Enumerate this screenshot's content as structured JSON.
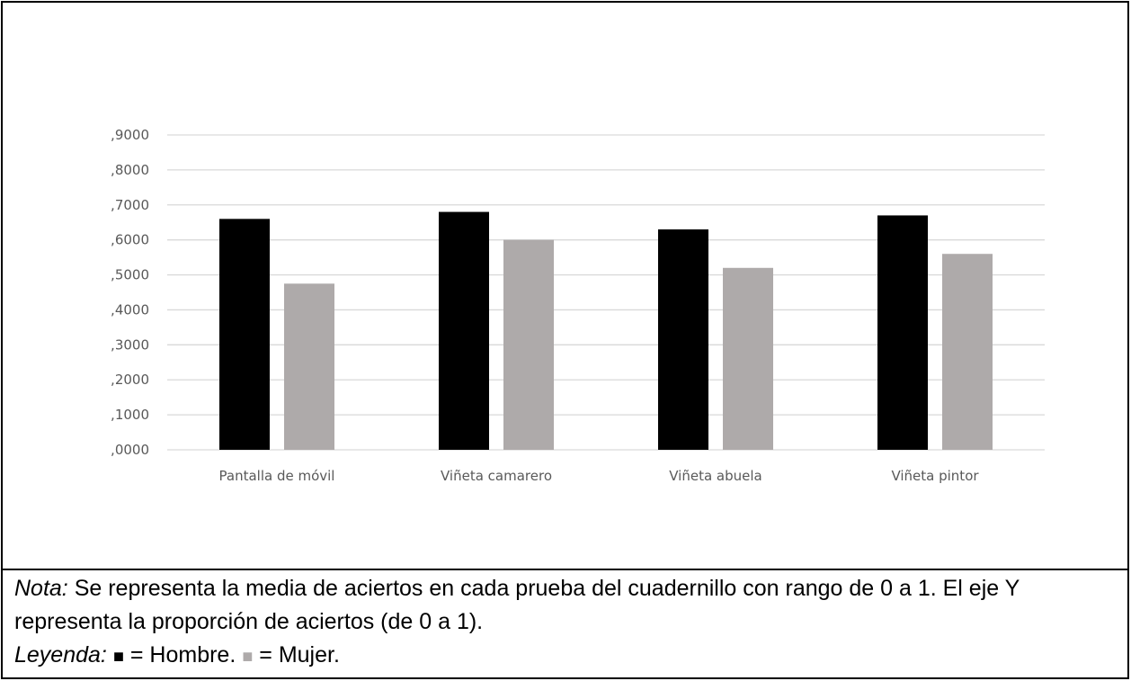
{
  "chart_data": {
    "type": "bar",
    "categories": [
      "Pantalla de móvil",
      "Viñeta camarero",
      "Viñeta abuela",
      "Viñeta pintor"
    ],
    "series": [
      {
        "values": [
          0.66,
          0.68,
          0.63,
          0.67
        ],
        "color": "#000000"
      },
      {
        "values": [
          0.475,
          0.6,
          0.52,
          0.56
        ],
        "color": "#aeaaaa"
      }
    ],
    "yticks": [
      ",0000",
      ",1000",
      ",2000",
      ",3000",
      ",4000",
      ",5000",
      ",6000",
      ",7000",
      ",8000",
      ",9000"
    ],
    "ylim": [
      0,
      0.9
    ],
    "grid": true,
    "gridcolor": "#d9d9d9"
  },
  "note": {
    "nota_label": "Nota:",
    "nota_text": " Se representa la media de aciertos en cada prueba del cuadernillo con rango de 0 a 1. El eje Y representa la proporción de aciertos (de 0 a 1).",
    "leyenda_label": "Leyenda:",
    "black_symbol": "■",
    "black_text": " = Hombre. ",
    "grey_symbol": "■",
    "grey_text": " = Mujer."
  }
}
